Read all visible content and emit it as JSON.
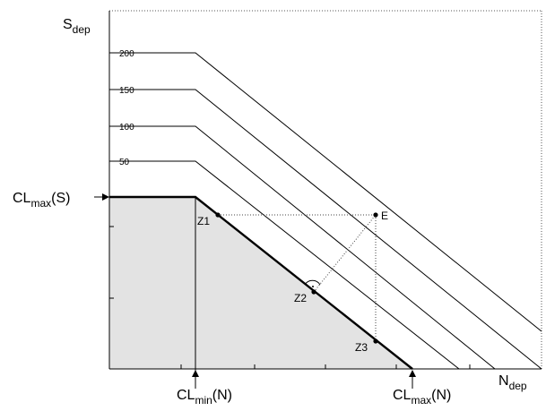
{
  "axes": {
    "y_label": "S",
    "y_label_sub": "dep",
    "x_label": "N",
    "x_label_sub": "dep"
  },
  "iso_lines": [
    "200",
    "150",
    "100",
    "50"
  ],
  "cl_max_s": {
    "main": "CL",
    "sub": "max",
    "suffix": "(S)"
  },
  "cl_min_n": {
    "main": "CL",
    "sub": "min",
    "suffix": "(N)"
  },
  "cl_max_n": {
    "main": "CL",
    "sub": "max",
    "suffix": "(N)"
  },
  "points": {
    "z1": "Z1",
    "z2": "Z2",
    "z3": "Z3",
    "e": "E"
  }
}
